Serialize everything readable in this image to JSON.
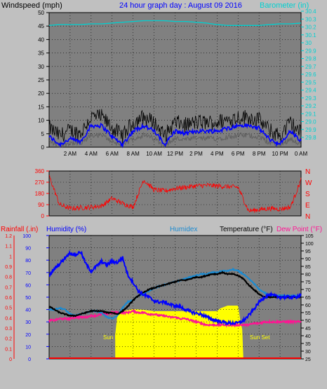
{
  "colors": {
    "bg": "#c0c0c0",
    "plot": "#808080",
    "grid": "#000000",
    "gust": "#000000",
    "wind": "#0000ff",
    "windLow": "#606060",
    "baro": "#00d0d0",
    "dir": "#ff0000",
    "rain": "#ff0000",
    "humidity": "#0000ff",
    "humidex": "#1c8ad0",
    "temp": "#000000",
    "dew": "#ff1493",
    "sun": "#ffff00",
    "sunText": "#ffff00"
  },
  "top": {
    "title": "24 hour graph day : August 09 2016",
    "left_label": "Windspeed (mph)",
    "right_label": "Barometer (in)",
    "left_ticks": [
      0,
      5,
      10,
      15,
      20,
      25,
      30,
      35,
      40,
      45,
      50
    ],
    "right_ticks": [
      "29.8",
      "29.9",
      "29.0",
      "29.1",
      "29.2",
      "29.3",
      "29.4",
      "29.5",
      "29.6",
      "29.7",
      "29.8",
      "29.9",
      "30",
      "30.1",
      "30.2",
      "30.3",
      "30.4"
    ]
  },
  "dir": {
    "left_ticks": [
      0,
      90,
      180,
      270,
      360
    ],
    "right_ticks": [
      "N",
      "E",
      "S",
      "W",
      "N"
    ]
  },
  "bottom": {
    "rain_label": "Rainfall (.in)",
    "humidity_label": "Humidity (%)",
    "humidex_label": "Humidex",
    "temp_label": "Temperature (°F)",
    "dew_label": "Dew Point (°F)",
    "rain_ticks": [
      "0",
      "0.1",
      "0.2",
      "0.3",
      "0.4",
      "0.5",
      "0.6",
      "0.7",
      "0.8",
      "0.9",
      "1",
      "1.1",
      "1.2"
    ],
    "humidity_ticks": [
      0,
      10,
      20,
      30,
      40,
      50,
      60,
      70,
      80,
      90,
      100
    ],
    "temp_ticks": [
      25,
      30,
      35,
      40,
      45,
      50,
      55,
      60,
      65,
      70,
      75,
      80,
      85,
      90,
      95,
      100,
      105
    ],
    "sunrise_label": "Sun Rise",
    "sunset_label": "Sun Set"
  },
  "x_ticks": [
    "2 AM",
    "4 AM",
    "6 AM",
    "8 AM",
    "10 AM",
    "12 PM",
    "2 PM",
    "4 PM",
    "6 PM",
    "8 PM",
    "10 PM",
    "0 AM"
  ],
  "chart_data": [
    {
      "type": "line",
      "title": "24 hour graph day : August 09 2016",
      "ylabel": "Windspeed (mph)",
      "y2label": "Barometer (in)",
      "ylim": [
        0,
        50
      ],
      "x": [
        0,
        1,
        2,
        3,
        4,
        5,
        6,
        7,
        8,
        9,
        10,
        11,
        12,
        13,
        14,
        15,
        16,
        17,
        18,
        19,
        20,
        21,
        22,
        23,
        24
      ],
      "series": [
        {
          "name": "Windspeed (mph)",
          "values": [
            4,
            1,
            3,
            2,
            8,
            8,
            4,
            1,
            6,
            8,
            6,
            1,
            6,
            5,
            6,
            6,
            6,
            7,
            8,
            8,
            7,
            3,
            1,
            6,
            2
          ]
        },
        {
          "name": "Barometer (in)",
          "values": [
            30.22,
            30.23,
            30.23,
            30.23,
            30.24,
            30.24,
            30.25,
            30.26,
            30.27,
            30.28,
            30.28,
            30.28,
            30.27,
            30.27,
            30.26,
            30.25,
            30.23,
            30.22,
            30.22,
            30.22,
            30.22,
            30.23,
            30.24,
            30.24,
            30.25
          ]
        }
      ]
    },
    {
      "type": "line",
      "ylim": [
        0,
        360
      ],
      "x": [
        0,
        1,
        2,
        3,
        4,
        5,
        6,
        7,
        8,
        9,
        10,
        11,
        12,
        13,
        14,
        15,
        16,
        17,
        18,
        19,
        20,
        21,
        22,
        23,
        24
      ],
      "series": [
        {
          "name": "Wind direction",
          "values": [
            320,
            90,
            60,
            65,
            70,
            80,
            140,
            100,
            70,
            290,
            210,
            200,
            220,
            230,
            240,
            245,
            240,
            235,
            230,
            40,
            50,
            60,
            55,
            70,
            290
          ]
        }
      ]
    },
    {
      "type": "line",
      "ylabel": "Humidity (%)",
      "y2label": "Temperature (°F)",
      "x": [
        0,
        0.5,
        1,
        1.5,
        2,
        2.5,
        3,
        3.5,
        4,
        4.5,
        5,
        5.5,
        6,
        6.5,
        7,
        7.5,
        8,
        8.5,
        9,
        9.5,
        10,
        10.5,
        11,
        11.5,
        12,
        12.5,
        13,
        13.5,
        14,
        14.5,
        15,
        15.5,
        16,
        16.5,
        17,
        17.5,
        18,
        18.5,
        19,
        19.5,
        20,
        20.5,
        21,
        21.5,
        22,
        22.5,
        23,
        23.5,
        24
      ],
      "series": [
        {
          "name": "Humidity (%)",
          "values": [
            67,
            73,
            77,
            82,
            86,
            84,
            87,
            77,
            71,
            75,
            79,
            76,
            79,
            78,
            82,
            68,
            62,
            55,
            52,
            50,
            47,
            46,
            46,
            44,
            43,
            42,
            40,
            38,
            37,
            36,
            34,
            32,
            31,
            30,
            29,
            29,
            29,
            31,
            35,
            40,
            46,
            50,
            52,
            51,
            50,
            50,
            50,
            50,
            52
          ]
        },
        {
          "name": "Humidex",
          "values": [
            57,
            57,
            58,
            57,
            54,
            53,
            54,
            55,
            56,
            56,
            55,
            52,
            51,
            53,
            58,
            62,
            63,
            66,
            67,
            69,
            71,
            72,
            73,
            74,
            75,
            76,
            77,
            78,
            79,
            80,
            80,
            81,
            81,
            82,
            82,
            83,
            82,
            80,
            77,
            74,
            70,
            68,
            66,
            66,
            66,
            66,
            66,
            66,
            66
          ]
        },
        {
          "name": "Temperature (°F)",
          "values": [
            59,
            57,
            55,
            54,
            53,
            53,
            54,
            55,
            56,
            56,
            56,
            55,
            55,
            54,
            56,
            59,
            63,
            66,
            68,
            70,
            71,
            72,
            73,
            74,
            75,
            76,
            76,
            77,
            78,
            78,
            79,
            80,
            80,
            81,
            80,
            80,
            79,
            77,
            73,
            70,
            67,
            65,
            65,
            65,
            65,
            65,
            65,
            65,
            65
          ]
        },
        {
          "name": "Dew Point (°F)",
          "values": [
            50,
            50,
            51,
            51,
            51,
            52,
            52,
            52,
            53,
            53,
            54,
            54,
            55,
            55,
            55,
            55,
            56,
            55,
            55,
            54,
            54,
            53,
            53,
            52,
            52,
            51,
            51,
            50,
            49,
            48,
            47,
            47,
            47,
            47,
            47,
            47,
            47,
            47,
            47,
            48,
            48,
            49,
            49,
            49,
            49,
            49,
            49,
            49,
            49
          ]
        },
        {
          "name": "Rainfall (.in)",
          "values": [
            0,
            0,
            0,
            0,
            0,
            0,
            0,
            0,
            0,
            0,
            0,
            0,
            0,
            0,
            0,
            0,
            0,
            0,
            0,
            0,
            0,
            0,
            0,
            0,
            0,
            0,
            0,
            0,
            0,
            0,
            0,
            0,
            0,
            0,
            0,
            0,
            0,
            0,
            0,
            0,
            0,
            0,
            0,
            0,
            0,
            0,
            0,
            0,
            0
          ]
        }
      ]
    }
  ]
}
